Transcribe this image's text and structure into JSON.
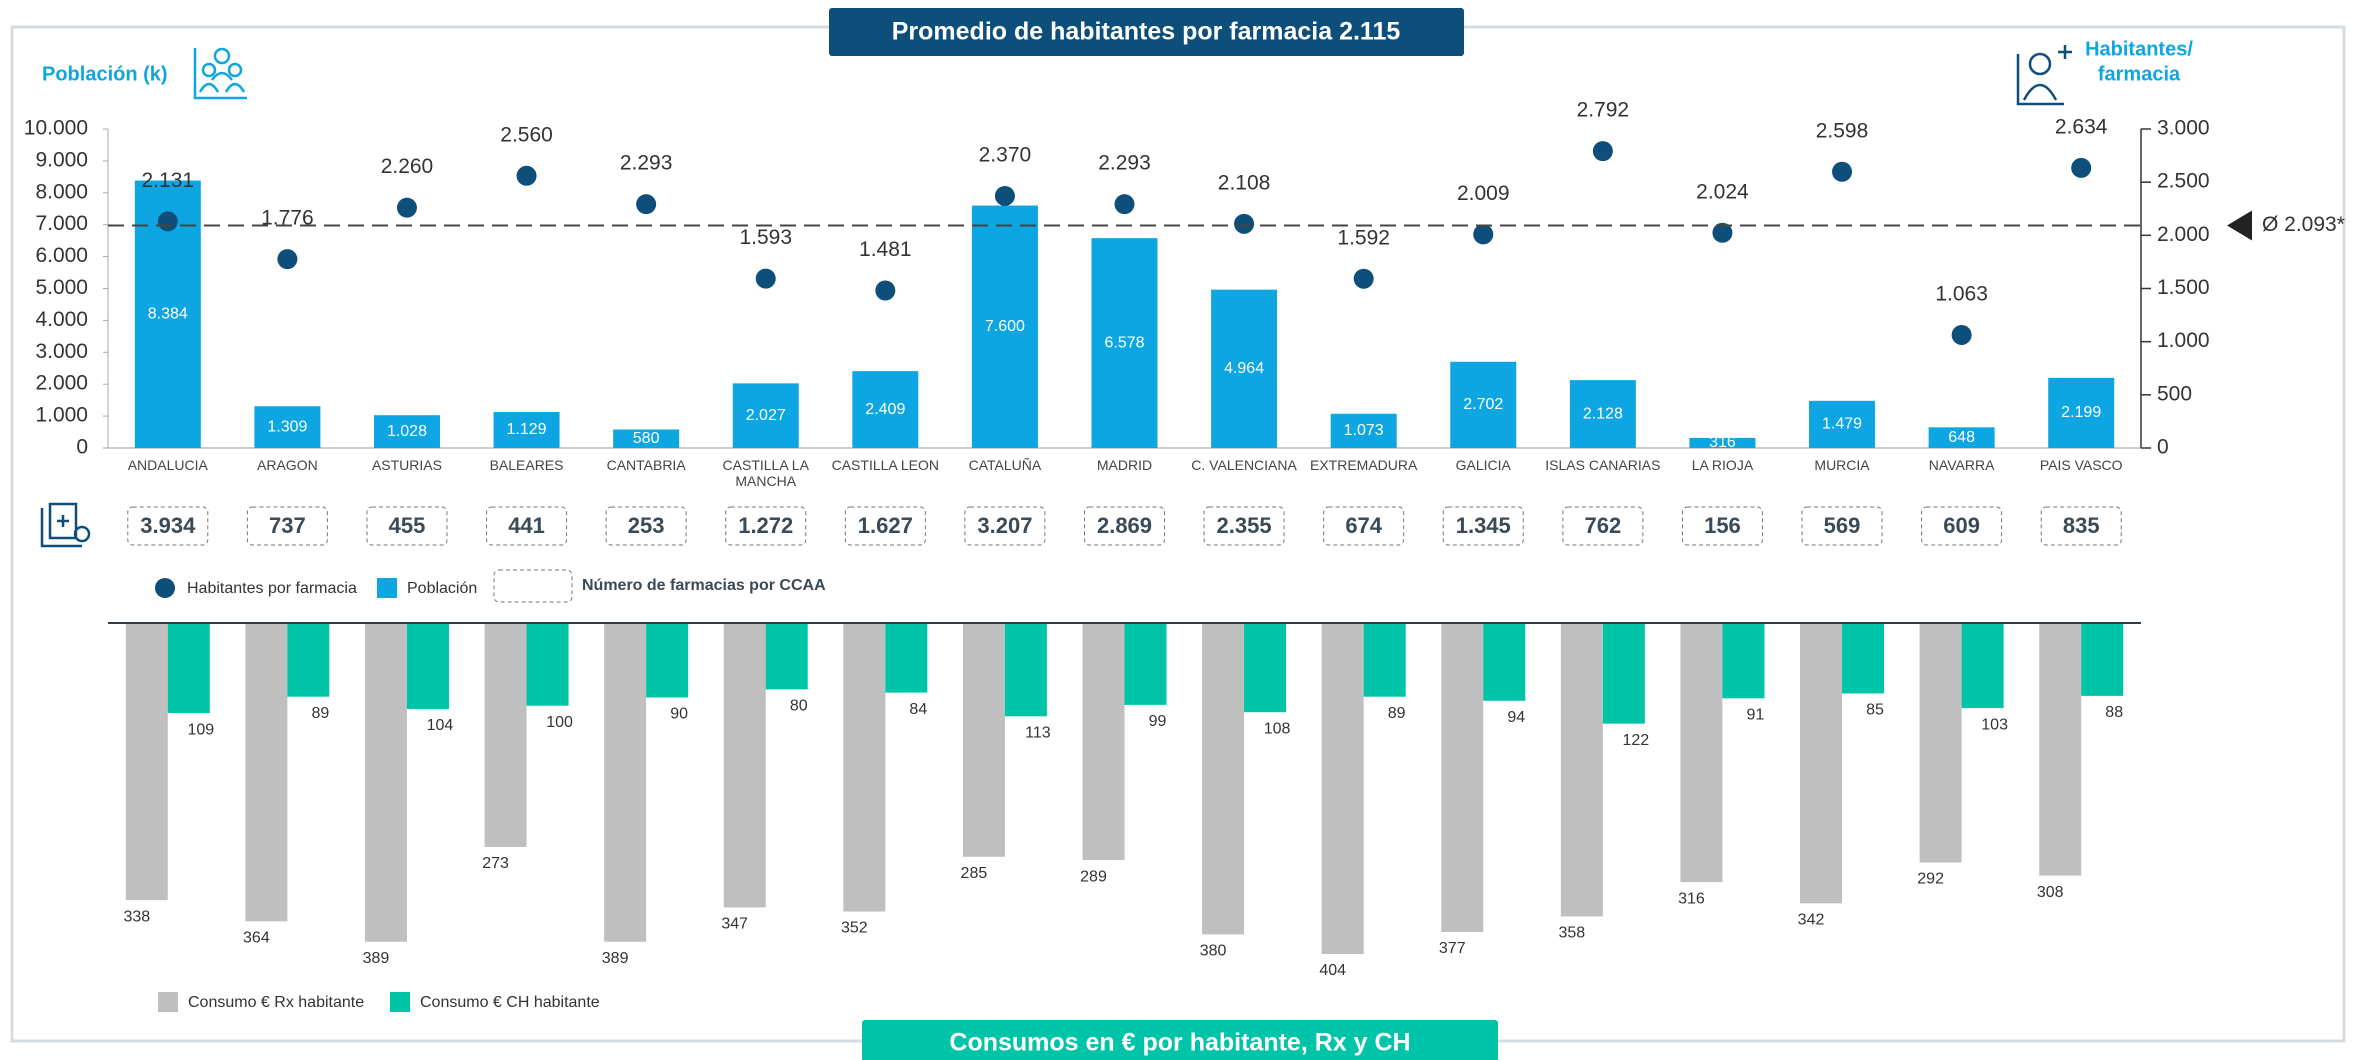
{
  "chart_data": [
    {
      "type": "combo",
      "title": "Promedio de habitantes por farmacia 2.115",
      "y_label": "Población (k)",
      "y2_label": [
        "Habitantes/",
        "farmacia"
      ],
      "categories": [
        "ANDALUCIA",
        "ARAGON",
        "ASTURIAS",
        "BALEARES",
        "CANTABRIA",
        "CASTILLA LA MANCHA",
        "CASTILLA LEON",
        "CATALUÑA",
        "MADRID",
        "C. VALENCIANA",
        "EXTREMADURA",
        "GALICIA",
        "ISLAS CANARIAS",
        "LA RIOJA",
        "MURCIA",
        "NAVARRA",
        "PAIS VASCO"
      ],
      "series": [
        {
          "name": "Población",
          "color": "#0ea5e3",
          "values": [
            8384,
            1309,
            1028,
            1129,
            580,
            2027,
            2409,
            7600,
            6578,
            4964,
            1073,
            2702,
            2128,
            316,
            1479,
            648,
            2199
          ],
          "value_labels": [
            "8.384",
            "1.309",
            "1.028",
            "1.129",
            "580",
            "2.027",
            "2.409",
            "7.600",
            "6.578",
            "4.964",
            "1.073",
            "2.702",
            "2.128",
            "316",
            "1.479",
            "648",
            "2.199"
          ]
        },
        {
          "name": "Habitantes por farmacia",
          "color": "#0d4f7a",
          "axis": "y2",
          "values": [
            2131,
            1776,
            2260,
            2560,
            2293,
            1593,
            1481,
            2370,
            2293,
            2108,
            1592,
            2009,
            2792,
            2024,
            2598,
            1063,
            2634
          ],
          "value_labels": [
            "2.131",
            "1.776",
            "2.260",
            "2.560",
            "2.293",
            "1.593",
            "1.481",
            "2.370",
            "2.293",
            "2.108",
            "1.592",
            "2.009",
            "2.792",
            "2.024",
            "2.598",
            "1.063",
            "2.634"
          ]
        }
      ],
      "pharmacies": {
        "name": "Número de farmacias por CCAA",
        "values": [
          3934,
          737,
          455,
          441,
          253,
          1272,
          1627,
          3207,
          2869,
          2355,
          674,
          1345,
          762,
          156,
          569,
          609,
          835
        ],
        "value_labels": [
          "3.934",
          "737",
          "455",
          "441",
          "253",
          "1.272",
          "1.627",
          "3.207",
          "2.869",
          "2.355",
          "674",
          "1.345",
          "762",
          "156",
          "569",
          "609",
          "835"
        ]
      },
      "ylim": [
        0,
        10000
      ],
      "yticks": [
        0,
        {
          "value": 1000,
          "label": "1.000"
        },
        {
          "value": 2000,
          "label": "2.000"
        },
        {
          "value": 3000,
          "label": "3.000"
        },
        {
          "value": 4000,
          "label": "4.000"
        },
        {
          "value": 5000,
          "label": "5.000"
        },
        {
          "value": 6000,
          "label": "6.000"
        },
        {
          "value": 7000,
          "label": "7.000"
        },
        {
          "value": 8000,
          "label": "8.000"
        },
        {
          "value": 9000,
          "label": "9.000"
        },
        {
          "value": 10000,
          "label": "10.000"
        }
      ],
      "y2lim": [
        0,
        3000
      ],
      "y2ticks": [
        0,
        500,
        {
          "value": 1000,
          "label": "1.000"
        },
        {
          "value": 1500,
          "label": "1.500"
        },
        {
          "value": 2000,
          "label": "2.000"
        },
        {
          "value": 2500,
          "label": "2.500"
        },
        {
          "value": 3000,
          "label": "3.000"
        }
      ],
      "reference_line": {
        "value": 2093,
        "label": "Ø 2.093*",
        "axis": "y2"
      }
    },
    {
      "type": "bar",
      "title": "Consumos en € por habitante, Rx y CH",
      "series": [
        {
          "name": "Consumo € Rx habitante",
          "color": "#bfbfbf",
          "values": [
            338,
            364,
            389,
            273,
            389,
            347,
            352,
            285,
            289,
            380,
            404,
            377,
            358,
            316,
            342,
            292,
            308
          ]
        },
        {
          "name": "Consumo € CH habitante",
          "color": "#00c4a7",
          "values": [
            109,
            89,
            104,
            100,
            90,
            80,
            84,
            113,
            99,
            108,
            89,
            94,
            122,
            91,
            85,
            103,
            88
          ]
        }
      ]
    }
  ]
}
